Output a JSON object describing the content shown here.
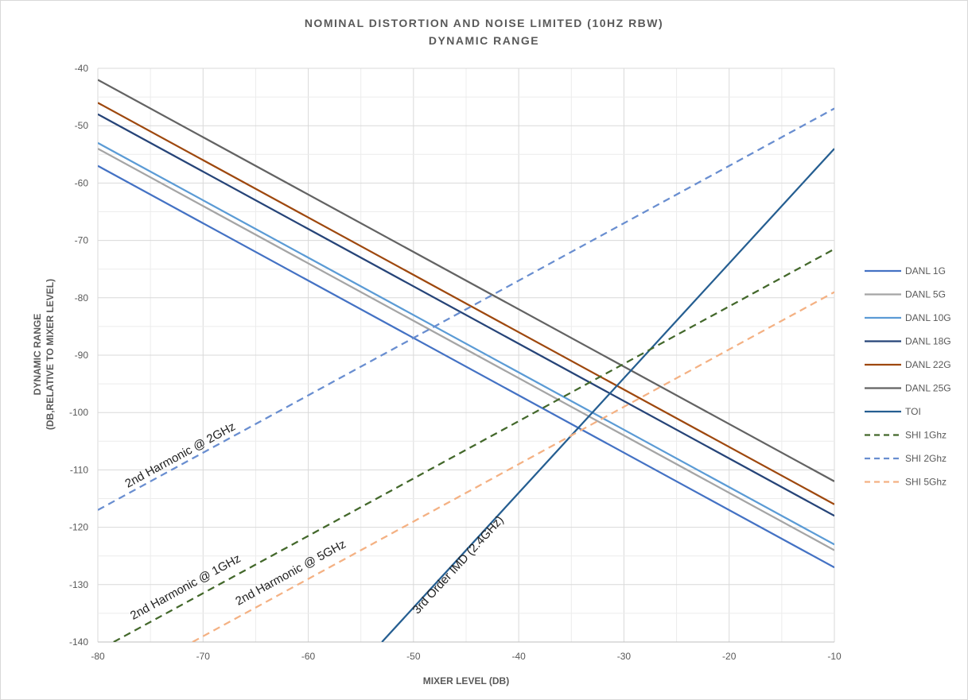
{
  "chart_data": {
    "type": "line",
    "title": "NOMINAL DISTORTION AND NOISE LIMITED (10HZ RBW)",
    "subtitle": "DYNAMIC RANGE",
    "xlabel": "MIXER  LEVEL (DB)",
    "ylabel": [
      "DYNAMIC RANGE",
      "(DB,RELATIVE  TO MIXER  LEVEL)"
    ],
    "xlim": [
      -80,
      -10
    ],
    "ylim": [
      -140,
      -40
    ],
    "xticks": [
      -80,
      -70,
      -60,
      -50,
      -40,
      -30,
      -20,
      -10
    ],
    "yticks": [
      -40,
      -50,
      -60,
      -70,
      -80,
      -90,
      -100,
      -110,
      -120,
      -130,
      -140
    ],
    "grid": true,
    "legend_position": "right",
    "series": [
      {
        "name": "DANL 1G",
        "color": "#4472c4",
        "dash": false,
        "x": [
          -80,
          -10
        ],
        "y": [
          -57,
          -127
        ]
      },
      {
        "name": "DANL 5G",
        "color": "#a5a5a5",
        "dash": false,
        "x": [
          -80,
          -10
        ],
        "y": [
          -54,
          -124
        ]
      },
      {
        "name": "DANL 10G",
        "color": "#5b9bd5",
        "dash": false,
        "x": [
          -80,
          -10
        ],
        "y": [
          -53,
          -123
        ]
      },
      {
        "name": "DANL 18G",
        "color": "#264478",
        "dash": false,
        "x": [
          -80,
          -10
        ],
        "y": [
          -48,
          -118
        ]
      },
      {
        "name": "DANL 22G",
        "color": "#9e480e",
        "dash": false,
        "x": [
          -80,
          -10
        ],
        "y": [
          -46,
          -116
        ]
      },
      {
        "name": "DANL 25G",
        "color": "#636363",
        "dash": false,
        "x": [
          -80,
          -10
        ],
        "y": [
          -42,
          -112
        ]
      },
      {
        "name": "TOI",
        "color": "#255e91",
        "dash": false,
        "x": [
          -53,
          -10
        ],
        "y": [
          -140,
          -54
        ]
      },
      {
        "name": "SHI 1Ghz",
        "color": "#43682b",
        "dash": true,
        "x": [
          -78.5,
          -10
        ],
        "y": [
          -140,
          -71.5
        ]
      },
      {
        "name": "SHI 2Ghz",
        "color": "#698ed0",
        "dash": true,
        "x": [
          -80,
          -10
        ],
        "y": [
          -117,
          -47
        ]
      },
      {
        "name": "SHI 5Ghz",
        "color": "#f4b183",
        "dash": true,
        "x": [
          -71,
          -10
        ],
        "y": [
          -140,
          -79
        ]
      }
    ],
    "annotations": [
      {
        "text": "2nd Harmonic @ 2GHz",
        "x": -72,
        "y": -108,
        "series": "SHI 2Ghz"
      },
      {
        "text": "2nd Harmonic @ 1GHz",
        "x": -71.5,
        "y": -131,
        "series": "SHI 1Ghz"
      },
      {
        "text": "2nd Harmonic @ 5GHz",
        "x": -61.5,
        "y": -128.5,
        "series": "SHI 5Ghz"
      },
      {
        "text": "3rd Order IMD (2.4GHz)",
        "x": -45.5,
        "y": -127,
        "series": "TOI"
      }
    ]
  }
}
